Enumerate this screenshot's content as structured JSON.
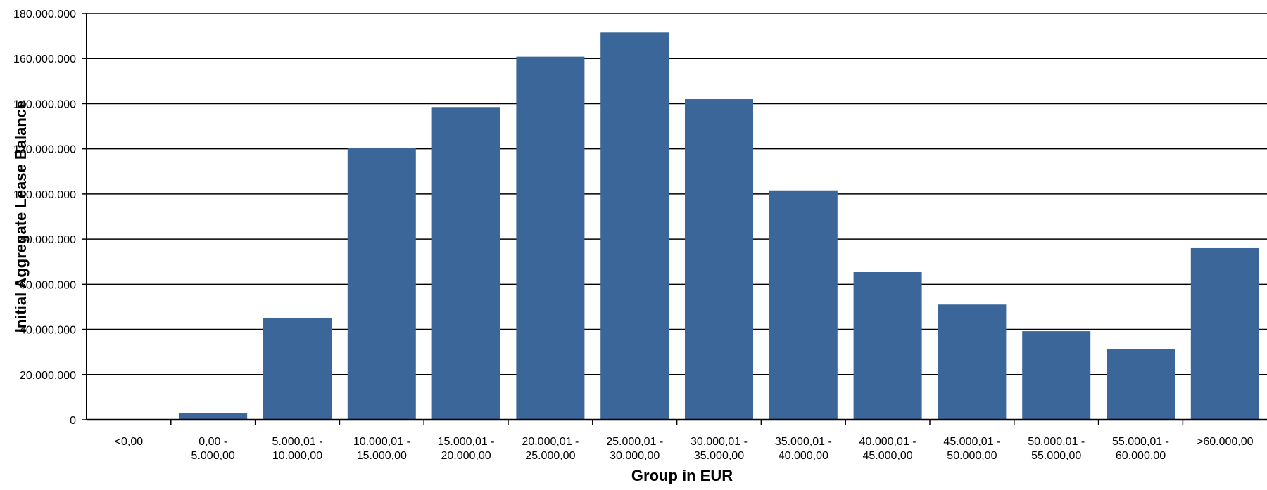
{
  "chart_data": {
    "type": "bar",
    "title": "",
    "xlabel": "Group in EUR",
    "ylabel": "Initial Aggregate Lease Balance",
    "ylim": [
      0,
      180000000
    ],
    "yticks": [
      0,
      20000000,
      40000000,
      60000000,
      80000000,
      100000000,
      120000000,
      140000000,
      160000000,
      180000000
    ],
    "ytick_labels": [
      "0",
      "20.000.000",
      "40.000.000",
      "60.000.000",
      "80.000.000",
      "100.000.000",
      "120.000.000",
      "140.000.000",
      "160.000.000",
      "180.000.000"
    ],
    "categories": [
      [
        "<0,00"
      ],
      [
        "0,00 -",
        "5.000,00"
      ],
      [
        "5.000,01 -",
        "10.000,00"
      ],
      [
        "10.000,01 -",
        "15.000,00"
      ],
      [
        "15.000,01 -",
        "20.000,00"
      ],
      [
        "20.000,01 -",
        "25.000,00"
      ],
      [
        "25.000,01 -",
        "30.000,00"
      ],
      [
        "30.000,01 -",
        "35.000,00"
      ],
      [
        "35.000,01 -",
        "40.000,00"
      ],
      [
        "40.000,01 -",
        "45.000,00"
      ],
      [
        "45.000,01 -",
        "50.000,00"
      ],
      [
        "50.000,01 -",
        "55.000,00"
      ],
      [
        "55.000,01 -",
        "60.000,00"
      ],
      [
        ">60.000,00"
      ]
    ],
    "values": [
      0,
      2800000,
      44900000,
      120300000,
      138500000,
      160800000,
      171500000,
      142000000,
      101600000,
      65400000,
      51000000,
      39200000,
      31200000,
      76000000
    ],
    "grid": true,
    "bar_color": "#3a6699"
  }
}
